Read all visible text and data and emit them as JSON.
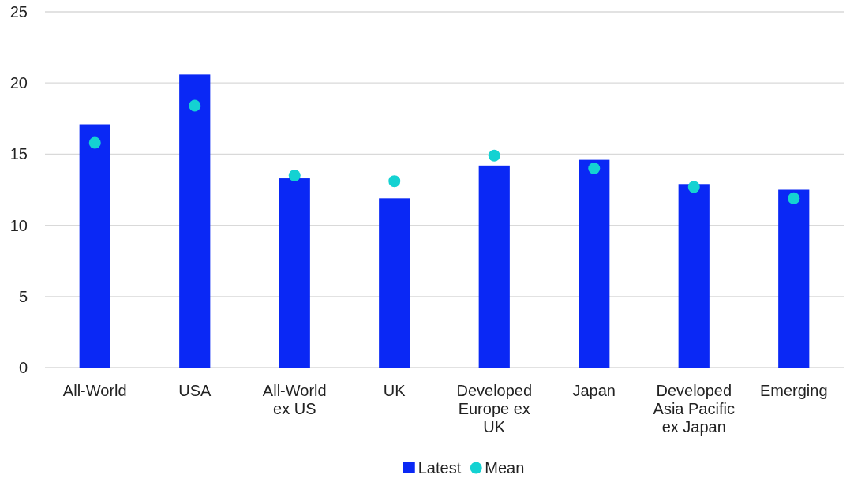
{
  "chart_data": {
    "type": "bar",
    "categories": [
      "All-World",
      "USA",
      "All-World ex US",
      "UK",
      "Developed Europe ex UK",
      "Japan",
      "Developed Asia Pacific ex Japan",
      "Emerging"
    ],
    "series": [
      {
        "name": "Latest",
        "color": "#0a28f5",
        "values": [
          17.1,
          20.6,
          13.3,
          11.9,
          14.2,
          14.6,
          12.9,
          12.5
        ]
      },
      {
        "name": "Mean",
        "type": "scatter",
        "color": "#14d2d2",
        "x": [
          "All-World",
          "USA",
          "All-World ex US",
          "UK",
          "Developed Europe ex UK",
          "Japan",
          "Developed Asia Pacific ex Japan",
          "Emerging"
        ],
        "values": [
          15.8,
          18.4,
          13.5,
          13.1,
          14.9,
          14.0,
          12.7,
          11.9
        ]
      }
    ],
    "ylim": [
      0,
      25
    ],
    "yticks": [
      0,
      5,
      10,
      15,
      20,
      25
    ],
    "grid": "y",
    "legend": "bottom",
    "marker": "circle"
  }
}
